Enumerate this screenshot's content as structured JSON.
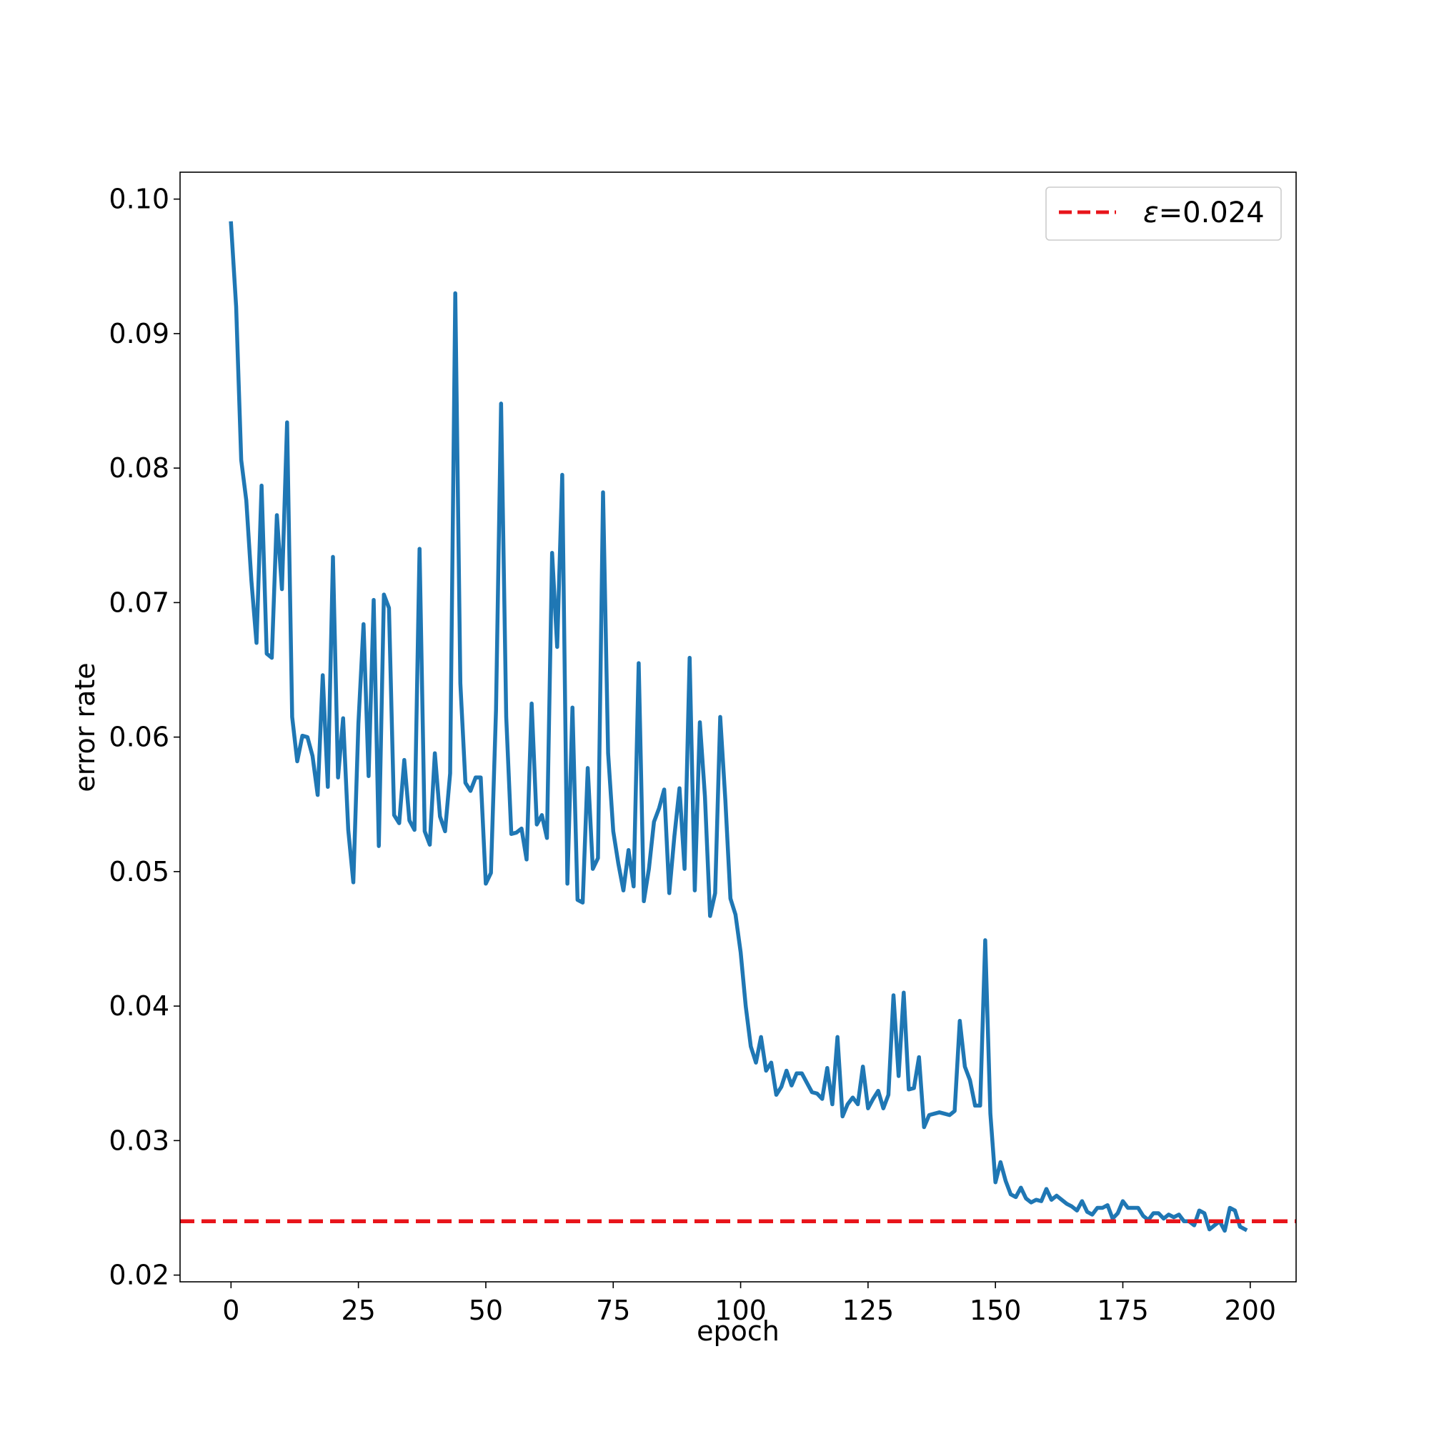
{
  "colors": {
    "series": "#1f77b4",
    "threshold": "#e8141a",
    "axes": "#000000",
    "legend_border": "#cccccc"
  },
  "chart_data": {
    "type": "line",
    "title": "",
    "xlabel": "epoch",
    "ylabel": "error rate",
    "xlim": [
      -10,
      209
    ],
    "ylim": [
      0.0195,
      0.102
    ],
    "xticks": [
      0,
      25,
      50,
      75,
      100,
      125,
      150,
      175,
      200
    ],
    "xtick_labels": [
      "0",
      "25",
      "50",
      "75",
      "100",
      "125",
      "150",
      "175",
      "200"
    ],
    "yticks": [
      0.02,
      0.03,
      0.04,
      0.05,
      0.06,
      0.07,
      0.08,
      0.09,
      0.1
    ],
    "ytick_labels": [
      "0.02",
      "0.03",
      "0.04",
      "0.05",
      "0.06",
      "0.07",
      "0.08",
      "0.09",
      "0.10"
    ],
    "grid": false,
    "legend_position": "top-right",
    "series": [
      {
        "x": [
          0,
          1,
          2,
          3,
          4,
          5,
          6,
          7,
          8,
          9,
          10,
          11,
          12,
          13,
          14,
          15,
          16,
          17,
          18,
          19,
          20,
          21,
          22,
          23,
          24,
          25,
          26,
          27,
          28,
          29,
          30,
          31,
          32,
          33,
          34,
          35,
          36,
          37,
          38,
          39,
          40,
          41,
          42,
          43,
          44,
          45,
          46,
          47,
          48,
          49,
          50,
          51,
          52,
          53,
          54,
          55,
          56,
          57,
          58,
          59,
          60,
          61,
          62,
          63,
          64,
          65,
          66,
          67,
          68,
          69,
          70,
          71,
          72,
          73,
          74,
          75,
          76,
          77,
          78,
          79,
          80,
          81,
          82,
          83,
          84,
          85,
          86,
          87,
          88,
          89,
          90,
          91,
          92,
          93,
          94,
          95,
          96,
          97,
          98,
          99,
          100,
          101,
          102,
          103,
          104,
          105,
          106,
          107,
          108,
          109,
          110,
          111,
          112,
          113,
          114,
          115,
          116,
          117,
          118,
          119,
          120,
          121,
          122,
          123,
          124,
          125,
          126,
          127,
          128,
          129,
          130,
          131,
          132,
          133,
          134,
          135,
          136,
          137,
          138,
          139,
          140,
          141,
          142,
          143,
          144,
          145,
          146,
          147,
          148,
          149,
          150,
          151,
          152,
          153,
          154,
          155,
          156,
          157,
          158,
          159,
          160,
          161,
          162,
          163,
          164,
          165,
          166,
          167,
          168,
          169,
          170,
          171,
          172,
          173,
          174,
          175,
          176,
          177,
          178,
          179,
          180,
          181,
          182,
          183,
          184,
          185,
          186,
          187,
          188,
          189,
          190,
          191,
          192,
          193,
          194,
          195,
          196,
          197,
          198,
          199
        ],
        "values": [
          0.0982,
          0.092,
          0.0806,
          0.0776,
          0.0716,
          0.067,
          0.0787,
          0.0662,
          0.0659,
          0.0765,
          0.071,
          0.0834,
          0.0615,
          0.0582,
          0.0601,
          0.06,
          0.0586,
          0.0557,
          0.0646,
          0.0563,
          0.0734,
          0.057,
          0.0614,
          0.0531,
          0.0492,
          0.061,
          0.0684,
          0.0571,
          0.0702,
          0.0519,
          0.0706,
          0.0696,
          0.0542,
          0.0536,
          0.0583,
          0.0538,
          0.0531,
          0.074,
          0.053,
          0.052,
          0.0588,
          0.0541,
          0.053,
          0.0573,
          0.093,
          0.064,
          0.0566,
          0.056,
          0.057,
          0.057,
          0.0491,
          0.0499,
          0.062,
          0.0848,
          0.0615,
          0.0528,
          0.0529,
          0.0532,
          0.0509,
          0.0625,
          0.0535,
          0.0542,
          0.0525,
          0.0737,
          0.0667,
          0.0795,
          0.0491,
          0.0622,
          0.0479,
          0.0477,
          0.0577,
          0.0502,
          0.051,
          0.0782,
          0.0588,
          0.053,
          0.0506,
          0.0486,
          0.0516,
          0.0489,
          0.0655,
          0.0478,
          0.0502,
          0.0537,
          0.0547,
          0.0561,
          0.0484,
          0.0526,
          0.0562,
          0.0502,
          0.0659,
          0.0486,
          0.0611,
          0.0556,
          0.0467,
          0.0484,
          0.0615,
          0.0553,
          0.048,
          0.0468,
          0.044,
          0.04,
          0.037,
          0.0358,
          0.0377,
          0.0352,
          0.0358,
          0.0334,
          0.034,
          0.0352,
          0.0341,
          0.035,
          0.035,
          0.0343,
          0.0336,
          0.0335,
          0.0331,
          0.0354,
          0.0327,
          0.0377,
          0.0318,
          0.0327,
          0.0332,
          0.0327,
          0.0355,
          0.0324,
          0.0331,
          0.0337,
          0.0324,
          0.0334,
          0.0408,
          0.0348,
          0.041,
          0.0338,
          0.0339,
          0.0362,
          0.031,
          0.0319,
          0.032,
          0.0321,
          0.032,
          0.0319,
          0.0322,
          0.0389,
          0.0355,
          0.0345,
          0.0326,
          0.0326,
          0.0449,
          0.032,
          0.0269,
          0.0284,
          0.027,
          0.026,
          0.0258,
          0.0265,
          0.0257,
          0.0254,
          0.0256,
          0.0255,
          0.0264,
          0.0256,
          0.0259,
          0.0256,
          0.0253,
          0.0251,
          0.0248,
          0.0255,
          0.0247,
          0.0245,
          0.025,
          0.025,
          0.0252,
          0.0242,
          0.0246,
          0.0255,
          0.025,
          0.025,
          0.025,
          0.0244,
          0.0241,
          0.0246,
          0.0246,
          0.0242,
          0.0245,
          0.0243,
          0.0245,
          0.024,
          0.024,
          0.0237,
          0.0248,
          0.0246,
          0.0234,
          0.0237,
          0.024,
          0.0233,
          0.025,
          0.0248,
          0.0236,
          0.0234
        ]
      },
      {
        "name": "ε=0.024",
        "type": "hline",
        "value": 0.024
      }
    ]
  },
  "legend": {
    "eps_symbol": "ε",
    "eps_value": "=0.024"
  }
}
